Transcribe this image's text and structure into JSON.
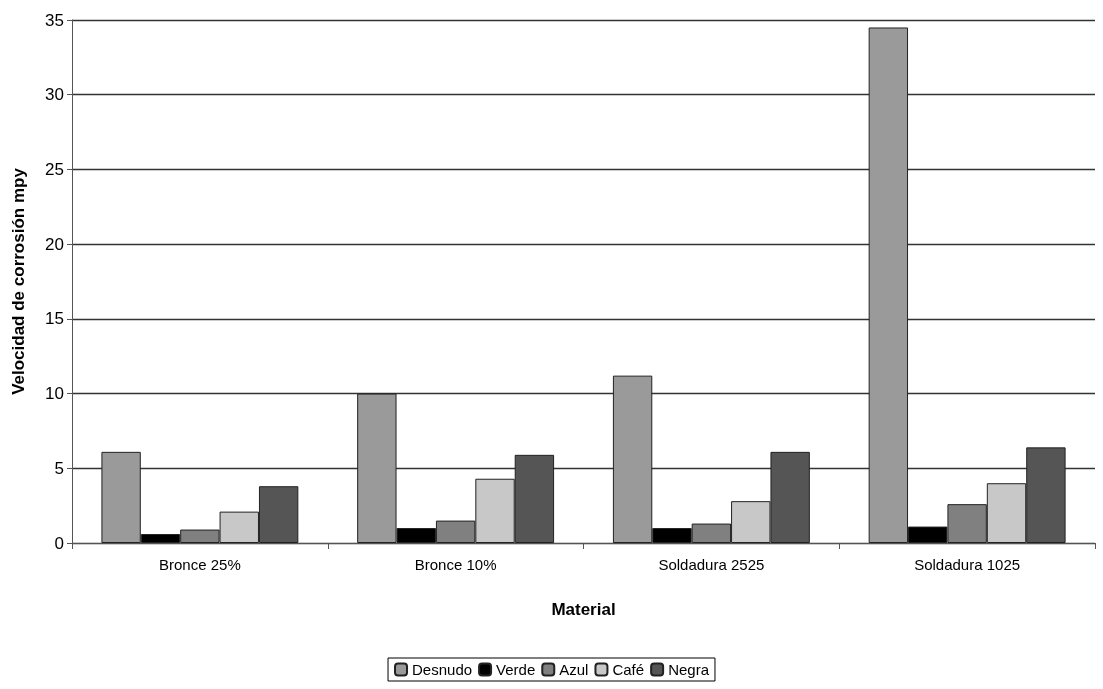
{
  "chart_data": {
    "type": "bar",
    "xlabel": "Material",
    "ylabel": "Velocidad de corrosión mpy",
    "categories": [
      "Bronce 25%",
      "Bronce 10%",
      "Soldadura 2525",
      "Soldadura 1025"
    ],
    "series": [
      {
        "name": "Desnudo",
        "color": "#9a9a9a",
        "values": [
          6.1,
          10.0,
          11.2,
          34.5
        ]
      },
      {
        "name": "Verde",
        "color": "#000000",
        "values": [
          0.6,
          1.0,
          1.0,
          1.1
        ]
      },
      {
        "name": "Azul",
        "color": "#808080",
        "values": [
          0.9,
          1.5,
          1.3,
          2.6
        ]
      },
      {
        "name": "Café",
        "color": "#c8c8c8",
        "values": [
          2.1,
          4.3,
          2.8,
          4.0
        ]
      },
      {
        "name": "Negra",
        "color": "#555555",
        "values": [
          3.8,
          5.9,
          6.1,
          6.4
        ]
      }
    ],
    "ylim": [
      0,
      35
    ],
    "yticks": [
      0,
      5,
      10,
      15,
      20,
      25,
      30,
      35
    ],
    "grid": "y",
    "legend": "bottom"
  }
}
